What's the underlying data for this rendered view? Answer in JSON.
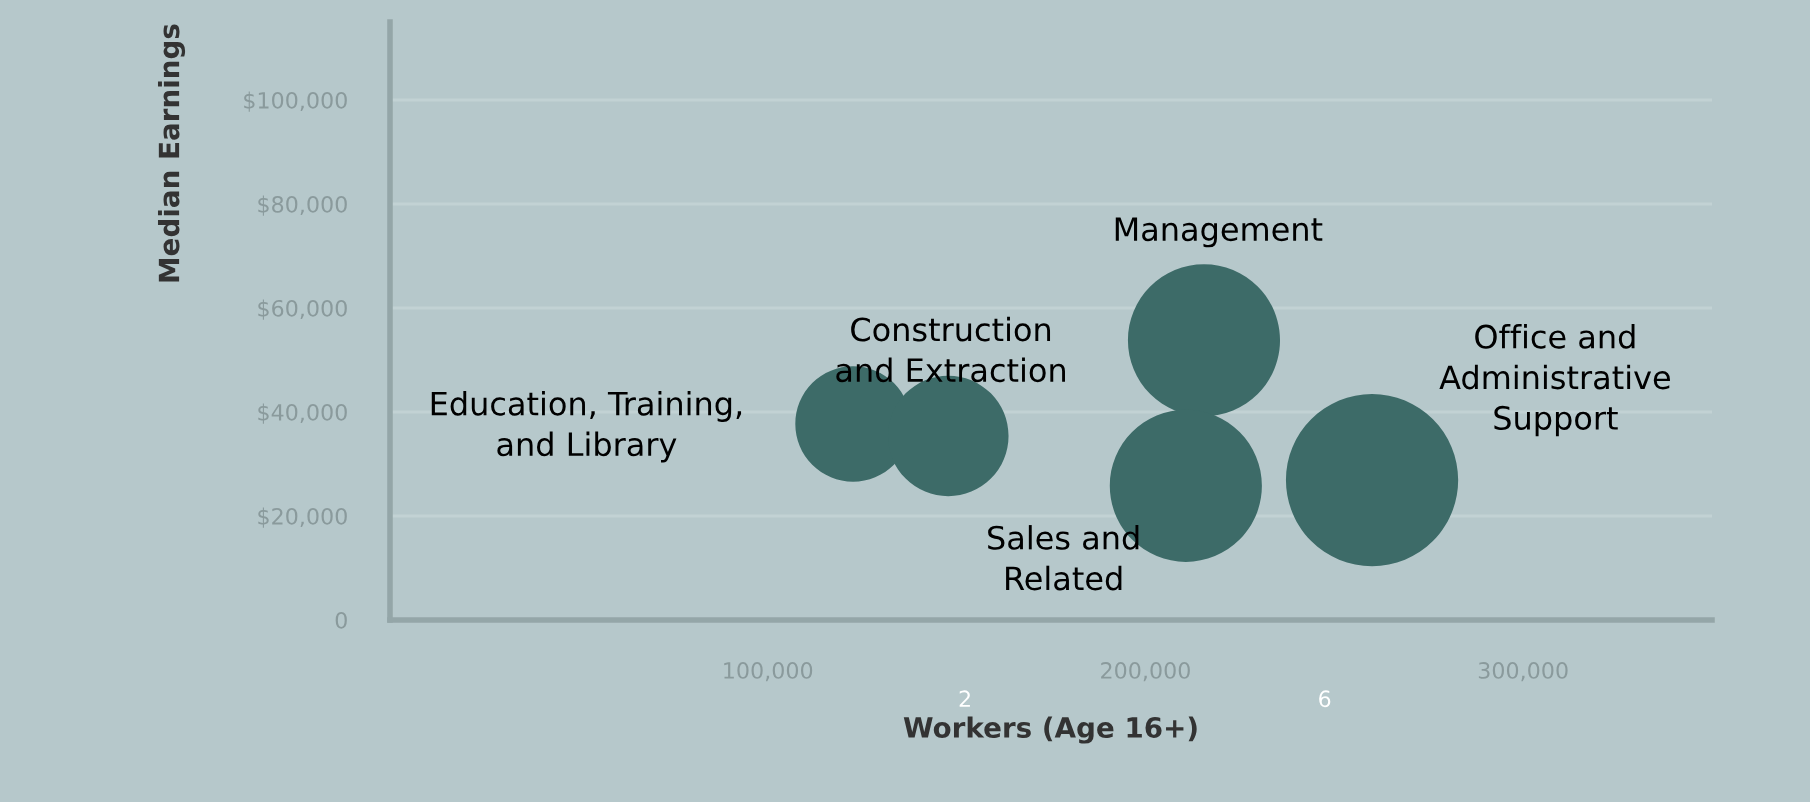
{
  "chart_data": {
    "type": "bubble",
    "xlabel": "Workers (Age 16+)",
    "ylabel": "Median Earnings",
    "series": [
      {
        "color": "#3d6b68",
        "x": [
          122600,
          147800,
          215500,
          210700,
          260000
        ],
        "values": [
          37700,
          35400,
          53800,
          25800,
          26900
        ],
        "sizes": [
          0.45,
          0.49,
          0.78,
          0.78,
          1
        ]
      }
    ],
    "annotations": [
      "Education, Training,\nand Library",
      "Construction\nand Extraction",
      "Management",
      "Sales and\nRelated",
      "Office and\nAdministrative\nSupport",
      "2",
      "6"
    ],
    "xlim": [
      0,
      350000
    ],
    "ylim": [
      0,
      115000
    ],
    "xticks": [
      {
        "value": 100000,
        "label": "100,000"
      },
      {
        "value": 200000,
        "label": "200,000"
      },
      {
        "value": 300000,
        "label": "300,000"
      }
    ],
    "yticks": [
      {
        "value": 0,
        "label": "0"
      },
      {
        "value": 20000,
        "label": "$20,000"
      },
      {
        "value": 40000,
        "label": "$40,000"
      },
      {
        "value": 60000,
        "label": "$60,000"
      },
      {
        "value": 80000,
        "label": "$80,000"
      },
      {
        "value": 100000,
        "label": "$100,000"
      }
    ],
    "grid": "y",
    "legend": false
  }
}
